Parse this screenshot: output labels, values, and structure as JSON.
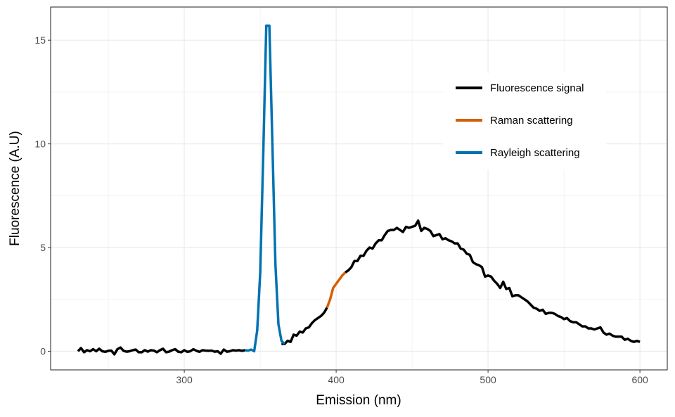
{
  "chart_data": {
    "type": "line",
    "xlabel": "Emission (nm)",
    "ylabel": "Fluorescence (A.U)",
    "xlim": [
      212,
      618
    ],
    "ylim": [
      -0.9,
      16.6
    ],
    "xticks": [
      300,
      400,
      500,
      600
    ],
    "yticks": [
      0,
      5,
      10,
      15
    ],
    "grid": true,
    "legend_position": "top-right",
    "colors": {
      "Fluorescence signal": "#000000",
      "Raman scattering": "#D55E00",
      "Rayleigh scattering": "#0072B2",
      "grid": "#ebebeb",
      "axis": "#333333"
    },
    "series": [
      {
        "name": "Fluorescence signal",
        "segments": [
          [
            [
              230,
              0
            ],
            [
              232,
              0.15
            ],
            [
              234,
              -0.05
            ],
            [
              236,
              0.05
            ],
            [
              238,
              0
            ],
            [
              240,
              0.1
            ],
            [
              242,
              0
            ],
            [
              244,
              0.12
            ],
            [
              246,
              0
            ],
            [
              248,
              -0.03
            ],
            [
              250,
              0.02
            ],
            [
              252,
              0.03
            ],
            [
              254,
              -0.15
            ],
            [
              256,
              0.1
            ],
            [
              258,
              0.18
            ],
            [
              260,
              0.02
            ],
            [
              262,
              -0.02
            ],
            [
              264,
              0
            ],
            [
              266,
              0.05
            ],
            [
              268,
              0.08
            ],
            [
              270,
              -0.05
            ],
            [
              272,
              -0.05
            ],
            [
              274,
              0.05
            ],
            [
              276,
              -0.02
            ],
            [
              278,
              0.05
            ],
            [
              280,
              0.03
            ],
            [
              282,
              -0.05
            ],
            [
              284,
              0.05
            ],
            [
              286,
              0.12
            ],
            [
              288,
              -0.05
            ],
            [
              290,
              -0.02
            ],
            [
              292,
              0.05
            ],
            [
              294,
              0.1
            ],
            [
              296,
              -0.02
            ],
            [
              298,
              -0.05
            ],
            [
              300,
              0.05
            ],
            [
              302,
              -0.03
            ],
            [
              304,
              0
            ],
            [
              306,
              0.1
            ],
            [
              308,
              0.02
            ],
            [
              310,
              -0.03
            ],
            [
              312,
              0.05
            ],
            [
              314,
              0.03
            ],
            [
              316,
              0.02
            ],
            [
              318,
              0.03
            ],
            [
              320,
              -0.02
            ],
            [
              322,
              0
            ],
            [
              324,
              -0.12
            ],
            [
              326,
              0.08
            ],
            [
              328,
              -0.02
            ],
            [
              330,
              0
            ],
            [
              332,
              0.05
            ],
            [
              334,
              0.03
            ],
            [
              336,
              0.05
            ],
            [
              338,
              0.02
            ],
            [
              340,
              0.05
            ]
          ],
          [
            [
              364,
              0.35
            ],
            [
              366,
              0.35
            ],
            [
              368,
              0.5
            ],
            [
              370,
              0.45
            ],
            [
              372,
              0.8
            ],
            [
              374,
              0.75
            ],
            [
              376,
              0.95
            ],
            [
              378,
              0.9
            ],
            [
              380,
              1.1
            ],
            [
              382,
              1.15
            ],
            [
              384,
              1.35
            ],
            [
              386,
              1.5
            ],
            [
              388,
              1.6
            ],
            [
              390,
              1.7
            ],
            [
              392,
              1.85
            ],
            [
              394,
              2.1
            ]
          ],
          [
            [
              406,
              3.8
            ],
            [
              408,
              3.9
            ],
            [
              410,
              4.05
            ],
            [
              412,
              4.35
            ],
            [
              414,
              4.35
            ],
            [
              416,
              4.6
            ],
            [
              418,
              4.6
            ],
            [
              420,
              4.85
            ],
            [
              422,
              5.0
            ],
            [
              424,
              4.95
            ],
            [
              426,
              5.2
            ],
            [
              428,
              5.35
            ],
            [
              430,
              5.35
            ],
            [
              432,
              5.6
            ],
            [
              434,
              5.8
            ],
            [
              436,
              5.85
            ],
            [
              438,
              5.85
            ],
            [
              440,
              5.95
            ],
            [
              442,
              5.85
            ],
            [
              444,
              5.75
            ],
            [
              446,
              6.0
            ],
            [
              448,
              5.95
            ],
            [
              450,
              6.0
            ],
            [
              452,
              6.05
            ],
            [
              454,
              6.3
            ],
            [
              456,
              5.8
            ],
            [
              458,
              5.95
            ],
            [
              460,
              5.9
            ],
            [
              462,
              5.8
            ],
            [
              464,
              5.55
            ],
            [
              466,
              5.6
            ],
            [
              468,
              5.65
            ],
            [
              470,
              5.4
            ],
            [
              472,
              5.45
            ],
            [
              474,
              5.35
            ],
            [
              476,
              5.3
            ],
            [
              478,
              5.2
            ],
            [
              480,
              5.2
            ],
            [
              482,
              4.95
            ],
            [
              484,
              4.9
            ],
            [
              486,
              4.7
            ],
            [
              488,
              4.65
            ],
            [
              490,
              4.3
            ],
            [
              492,
              4.2
            ],
            [
              494,
              4.15
            ],
            [
              496,
              4.05
            ],
            [
              498,
              3.6
            ],
            [
              500,
              3.65
            ],
            [
              502,
              3.6
            ],
            [
              504,
              3.4
            ],
            [
              506,
              3.25
            ],
            [
              508,
              3.05
            ],
            [
              510,
              3.35
            ],
            [
              512,
              3.0
            ],
            [
              514,
              3.05
            ],
            [
              516,
              2.65
            ],
            [
              518,
              2.7
            ],
            [
              520,
              2.7
            ],
            [
              522,
              2.6
            ],
            [
              524,
              2.5
            ],
            [
              526,
              2.4
            ],
            [
              528,
              2.25
            ],
            [
              530,
              2.1
            ],
            [
              532,
              2.05
            ],
            [
              534,
              1.95
            ],
            [
              536,
              2.0
            ],
            [
              538,
              1.8
            ],
            [
              540,
              1.85
            ],
            [
              542,
              1.85
            ],
            [
              544,
              1.8
            ],
            [
              546,
              1.7
            ],
            [
              548,
              1.65
            ],
            [
              550,
              1.55
            ],
            [
              552,
              1.6
            ],
            [
              554,
              1.45
            ],
            [
              556,
              1.4
            ],
            [
              558,
              1.4
            ],
            [
              560,
              1.3
            ],
            [
              562,
              1.2
            ],
            [
              564,
              1.2
            ],
            [
              566,
              1.1
            ],
            [
              568,
              1.1
            ],
            [
              570,
              1.05
            ],
            [
              572,
              1.1
            ],
            [
              574,
              1.15
            ],
            [
              576,
              0.9
            ],
            [
              578,
              0.8
            ],
            [
              580,
              0.85
            ],
            [
              582,
              0.75
            ],
            [
              584,
              0.7
            ],
            [
              586,
              0.7
            ],
            [
              588,
              0.7
            ],
            [
              590,
              0.55
            ],
            [
              592,
              0.6
            ],
            [
              594,
              0.5
            ],
            [
              596,
              0.45
            ],
            [
              598,
              0.5
            ],
            [
              600,
              0.45
            ]
          ]
        ]
      },
      {
        "name": "Raman scattering",
        "segments": [
          [
            [
              394,
              2.1
            ],
            [
              396,
              2.5
            ],
            [
              398,
              3.05
            ],
            [
              400,
              3.25
            ],
            [
              402,
              3.45
            ],
            [
              404,
              3.65
            ],
            [
              406,
              3.8
            ]
          ]
        ]
      },
      {
        "name": "Rayleigh scattering",
        "segments": [
          [
            [
              340,
              0.05
            ],
            [
              342,
              0.03
            ],
            [
              344,
              0.08
            ],
            [
              346,
              0
            ],
            [
              348,
              1.0
            ],
            [
              350,
              3.8
            ],
            [
              352,
              9.5
            ],
            [
              354,
              15.7
            ],
            [
              356,
              15.7
            ],
            [
              358,
              10.0
            ],
            [
              360,
              4.2
            ],
            [
              362,
              1.3
            ],
            [
              364,
              0.5
            ],
            [
              366,
              0.35
            ]
          ]
        ]
      }
    ]
  }
}
